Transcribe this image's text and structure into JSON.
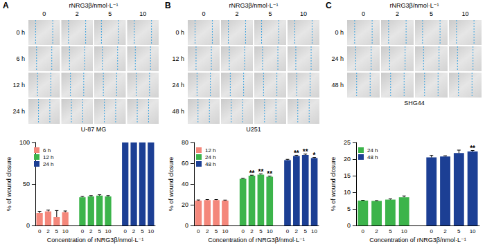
{
  "image_panels": [
    {
      "label": "A",
      "header": "rNRG3β/nmol·L⁻¹",
      "columns": [
        "0",
        "2",
        "5",
        "10"
      ],
      "rows": [
        "0 h",
        "6 h",
        "12 h",
        "24 h"
      ],
      "caption": "U-87 MG"
    },
    {
      "label": "B",
      "header": "rNRG3β/nmol·L⁻¹",
      "columns": [
        "0",
        "2",
        "5",
        "10"
      ],
      "rows": [
        "0 h",
        "12 h",
        "24 h",
        "48 h"
      ],
      "caption": "U251"
    },
    {
      "label": "C",
      "header": "rNRG3β/nmol·L⁻¹",
      "columns": [
        "0",
        "2",
        "5",
        "10"
      ],
      "rows": [
        "0 h",
        "24 h",
        "48 h"
      ],
      "caption": "SHG44"
    }
  ],
  "chart_data": [
    {
      "type": "bar",
      "categories": [
        "0",
        "2",
        "5",
        "10",
        null,
        "0",
        "2",
        "5",
        "10",
        null,
        "0",
        "2",
        "5",
        "10"
      ],
      "x_label": "Concentration of rNRG3β/nmol·L⁻¹",
      "y_label": "% of wound closure",
      "ylim": [
        0,
        100
      ],
      "yticks": [
        0,
        50,
        100
      ],
      "grid": false,
      "legend": "top-left",
      "series": [
        {
          "name": "6 h",
          "color": "#f4877b",
          "values": [
            15,
            17,
            10,
            16,
            null,
            null,
            null,
            null,
            null,
            null,
            null,
            null,
            null,
            null
          ],
          "errors": [
            2,
            1.5,
            8,
            1.5,
            null,
            null,
            null,
            null,
            null,
            null,
            null,
            null,
            null,
            null
          ]
        },
        {
          "name": "12 h",
          "color": "#3cb44b",
          "values": [
            null,
            null,
            null,
            null,
            null,
            34,
            35,
            36,
            35,
            null,
            null,
            null,
            null,
            null
          ],
          "errors": [
            null,
            null,
            null,
            null,
            null,
            1,
            1,
            1,
            1,
            null,
            null,
            null,
            null,
            null
          ]
        },
        {
          "name": "24 h",
          "color": "#1c3f94",
          "values": [
            null,
            null,
            null,
            null,
            null,
            null,
            null,
            null,
            null,
            null,
            100,
            100,
            100,
            100
          ],
          "errors": [
            null,
            null,
            null,
            null,
            null,
            null,
            null,
            null,
            null,
            null,
            0,
            0,
            0,
            0
          ]
        }
      ]
    },
    {
      "type": "bar",
      "categories": [
        "0",
        "2",
        "5",
        "10",
        null,
        "0",
        "2",
        "5",
        "10",
        null,
        "0",
        "2",
        "5",
        "10"
      ],
      "x_label": "Concentration of rNRG3β/nmol·L⁻¹",
      "y_label": "% of wound closure",
      "ylim": [
        0,
        80
      ],
      "yticks": [
        0,
        20,
        40,
        60,
        80
      ],
      "grid": false,
      "legend": "top-left",
      "series": [
        {
          "name": "12 h",
          "color": "#f4877b",
          "values": [
            24,
            24.5,
            24.5,
            24,
            null,
            null,
            null,
            null,
            null,
            null,
            null,
            null,
            null,
            null
          ],
          "errors": [
            0.6,
            0.5,
            0.5,
            0.5,
            null,
            null,
            null,
            null,
            null,
            null,
            null,
            null,
            null,
            null
          ]
        },
        {
          "name": "24 h",
          "color": "#3cb44b",
          "values": [
            null,
            null,
            null,
            null,
            null,
            45,
            48,
            49,
            47,
            null,
            null,
            null,
            null,
            null
          ],
          "errors": [
            null,
            null,
            null,
            null,
            null,
            0.6,
            0.5,
            0.8,
            0.6,
            null,
            null,
            null,
            null,
            null
          ],
          "significance": [
            null,
            null,
            null,
            null,
            null,
            null,
            "**",
            "**",
            "**",
            null,
            null,
            null,
            null,
            null
          ]
        },
        {
          "name": "48 h",
          "color": "#1c3f94",
          "values": [
            null,
            null,
            null,
            null,
            null,
            null,
            null,
            null,
            null,
            null,
            63,
            67,
            68,
            65
          ],
          "errors": [
            null,
            null,
            null,
            null,
            null,
            null,
            null,
            null,
            null,
            null,
            0.8,
            0.7,
            0.8,
            0.6
          ],
          "significance": [
            null,
            null,
            null,
            null,
            null,
            null,
            null,
            null,
            null,
            null,
            null,
            "**",
            "**",
            "*"
          ]
        }
      ]
    },
    {
      "type": "bar",
      "categories": [
        "0",
        "2",
        "5",
        "10",
        null,
        "0",
        "2",
        "5",
        "10"
      ],
      "x_label": "Concentration of rNRG3β/nmol·L⁻¹",
      "y_label": "% of wound closure",
      "ylim": [
        0,
        25
      ],
      "yticks": [
        0,
        5,
        10,
        15,
        20,
        25
      ],
      "grid": false,
      "legend": "top-left",
      "series": [
        {
          "name": "24 h",
          "color": "#3cb44b",
          "values": [
            7.5,
            7.4,
            7.8,
            8.5,
            null,
            null,
            null,
            null,
            null
          ],
          "errors": [
            0.1,
            0.1,
            0.2,
            0.4,
            null,
            null,
            null,
            null,
            null
          ]
        },
        {
          "name": "48 h",
          "color": "#1c3f94",
          "values": [
            null,
            null,
            null,
            null,
            null,
            20.5,
            20.8,
            21.8,
            22.3
          ],
          "errors": [
            null,
            null,
            null,
            null,
            null,
            0.6,
            0.2,
            0.9,
            0.3
          ],
          "significance": [
            null,
            null,
            null,
            null,
            null,
            null,
            null,
            null,
            "**"
          ]
        }
      ]
    }
  ]
}
